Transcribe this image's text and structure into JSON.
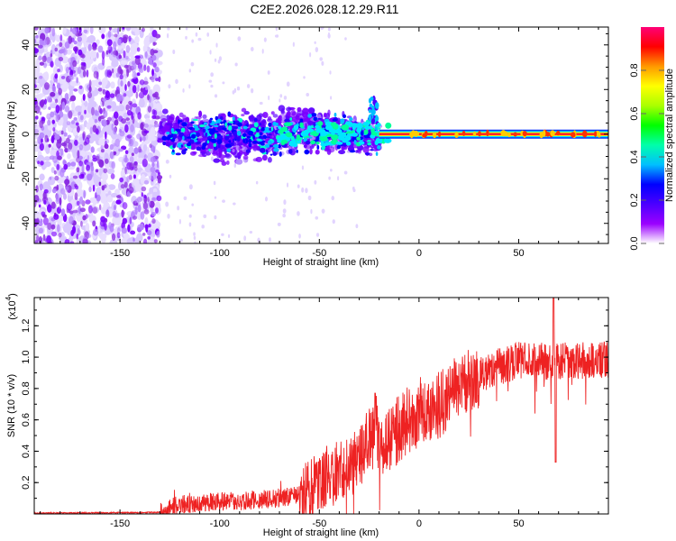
{
  "title": "C2E2.2026.028.12.29.R11",
  "chart_data": [
    {
      "type": "heatmap",
      "name": "spectrogram",
      "xlabel": "Height of straight line (km)",
      "ylabel": "Frequency (Hz)",
      "xlim": [
        -193,
        95
      ],
      "ylim": [
        -49,
        48
      ],
      "xticks": [
        -150,
        -100,
        -50,
        0,
        50
      ],
      "xtick_labels": [
        "-150",
        "-100",
        "-50",
        "0",
        "50"
      ],
      "yticks": [
        -40,
        -20,
        0,
        20,
        40
      ],
      "ytick_labels": [
        "-40",
        "-20",
        "0",
        "20",
        "40"
      ],
      "colorbar": {
        "label": "Normalized spectral amplitude",
        "range": [
          0,
          1
        ],
        "ticks": [
          0.0,
          0.2,
          0.4,
          0.6,
          0.8
        ],
        "tick_labels": [
          "0.0",
          "0.2",
          "0.4",
          "0.6",
          "0.8"
        ],
        "colormap": [
          "#ffffff",
          "#9b00ff",
          "#4b00ff",
          "#0000ff",
          "#00bfff",
          "#00ffaa",
          "#00ff00",
          "#aaff00",
          "#ffff00",
          "#ff9900",
          "#ff0000",
          "#ff0077"
        ]
      },
      "regions": [
        {
          "desc": "noise",
          "x": [
            -193,
            -130
          ],
          "f": [
            -49,
            48
          ],
          "amplitude": 0.12
        },
        {
          "desc": "scatter",
          "x": [
            -130,
            -20
          ],
          "f": [
            -15,
            15
          ],
          "amplitude": 0.35
        },
        {
          "desc": "tone",
          "x": [
            -20,
            95
          ],
          "f": [
            -1,
            1
          ],
          "amplitude": 0.95
        }
      ]
    },
    {
      "type": "line",
      "name": "snr",
      "xlabel": "Height of straight line (km)",
      "ylabel": "SNR (10 * v/v)",
      "yscale_label": "(x10",
      "yscale_exponent": "4",
      "xlim": [
        -193,
        95
      ],
      "ylim": [
        0,
        1.38
      ],
      "xticks": [
        -150,
        -100,
        -50,
        0,
        50
      ],
      "xtick_labels": [
        "-150",
        "-100",
        "-50",
        "0",
        "50"
      ],
      "yticks": [
        0.2,
        0.4,
        0.6,
        0.8,
        1.0,
        1.2
      ],
      "ytick_labels": [
        "0.2",
        "0.4",
        "0.6",
        "0.8",
        "1.0",
        "1.2"
      ],
      "series": [
        {
          "name": "SNR",
          "color": "#ee2222",
          "x": [
            -193,
            -180,
            -170,
            -160,
            -150,
            -140,
            -130,
            -125,
            -120,
            -110,
            -100,
            -90,
            -80,
            -70,
            -60,
            -55,
            -50,
            -45,
            -40,
            -35,
            -30,
            -25,
            -22,
            -20,
            -15,
            -10,
            -5,
            0,
            5,
            10,
            15,
            20,
            25,
            30,
            35,
            40,
            45,
            50,
            55,
            60,
            65,
            67,
            70,
            75,
            80,
            85,
            90,
            95
          ],
          "y": [
            0.005,
            0.006,
            0.006,
            0.007,
            0.008,
            0.008,
            0.01,
            0.04,
            0.06,
            0.07,
            0.08,
            0.08,
            0.09,
            0.1,
            0.12,
            0.15,
            0.2,
            0.25,
            0.28,
            0.3,
            0.35,
            0.5,
            0.6,
            0.45,
            0.45,
            0.55,
            0.6,
            0.65,
            0.68,
            0.7,
            0.75,
            0.8,
            0.85,
            0.88,
            0.92,
            0.95,
            0.96,
            0.98,
            0.97,
            0.98,
            0.96,
            0.99,
            0.97,
            0.98,
            0.98,
            0.97,
            0.98,
            0.99
          ]
        }
      ]
    }
  ]
}
